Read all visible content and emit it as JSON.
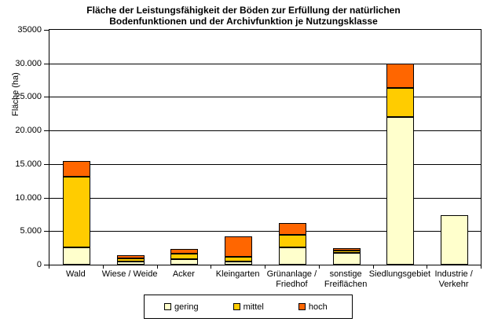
{
  "chart_data": {
    "type": "bar",
    "stacked": true,
    "title": "Fläche der Leistungsfähigkeit der Böden zur Erfüllung der natürlichen\nBodenfunktionen und der Archivfunktion je Nutzungsklasse",
    "ylabel": "Fläche (ha)",
    "ylim": [
      0,
      35000
    ],
    "grid_interval": 5000,
    "grid": true,
    "legend_position": "bottom",
    "categories": [
      "Wald",
      "Wiese / Weide",
      "Acker",
      "Kleingarten",
      "Grünanlage / Friedhof",
      "sonstige Freiflächen",
      "Siedlungsgebiet",
      "Industrie / Verkehr"
    ],
    "category_labels_wrapped": [
      "Wald",
      "Wiese / Weide",
      "Acker",
      "Kleingarten",
      "Grünanlage /\nFriedhof",
      "sonstige\nFreiflächen",
      "Siedlungsgebiet",
      "Industrie /\nVerkehr"
    ],
    "y_ticks": [
      {
        "value": 0,
        "label": "0"
      },
      {
        "value": 5000,
        "label": "5.000"
      },
      {
        "value": 10000,
        "label": "10.000"
      },
      {
        "value": 15000,
        "label": "15.000"
      },
      {
        "value": 20000,
        "label": "20.000"
      },
      {
        "value": 25000,
        "label": "25.000"
      },
      {
        "value": 30000,
        "label": "30.000"
      },
      {
        "value": 35000,
        "label": "35000"
      }
    ],
    "series": [
      {
        "name": "gering",
        "color": "#FFFFCC",
        "values": [
          2600,
          500,
          800,
          500,
          2600,
          1700,
          22000,
          7400
        ]
      },
      {
        "name": "mittel",
        "color": "#FFCC00",
        "values": [
          10500,
          400,
          800,
          700,
          1800,
          400,
          4300,
          0
        ]
      },
      {
        "name": "hoch",
        "color": "#FF6600",
        "values": [
          2400,
          500,
          800,
          3000,
          1800,
          400,
          3700,
          0
        ]
      }
    ]
  }
}
